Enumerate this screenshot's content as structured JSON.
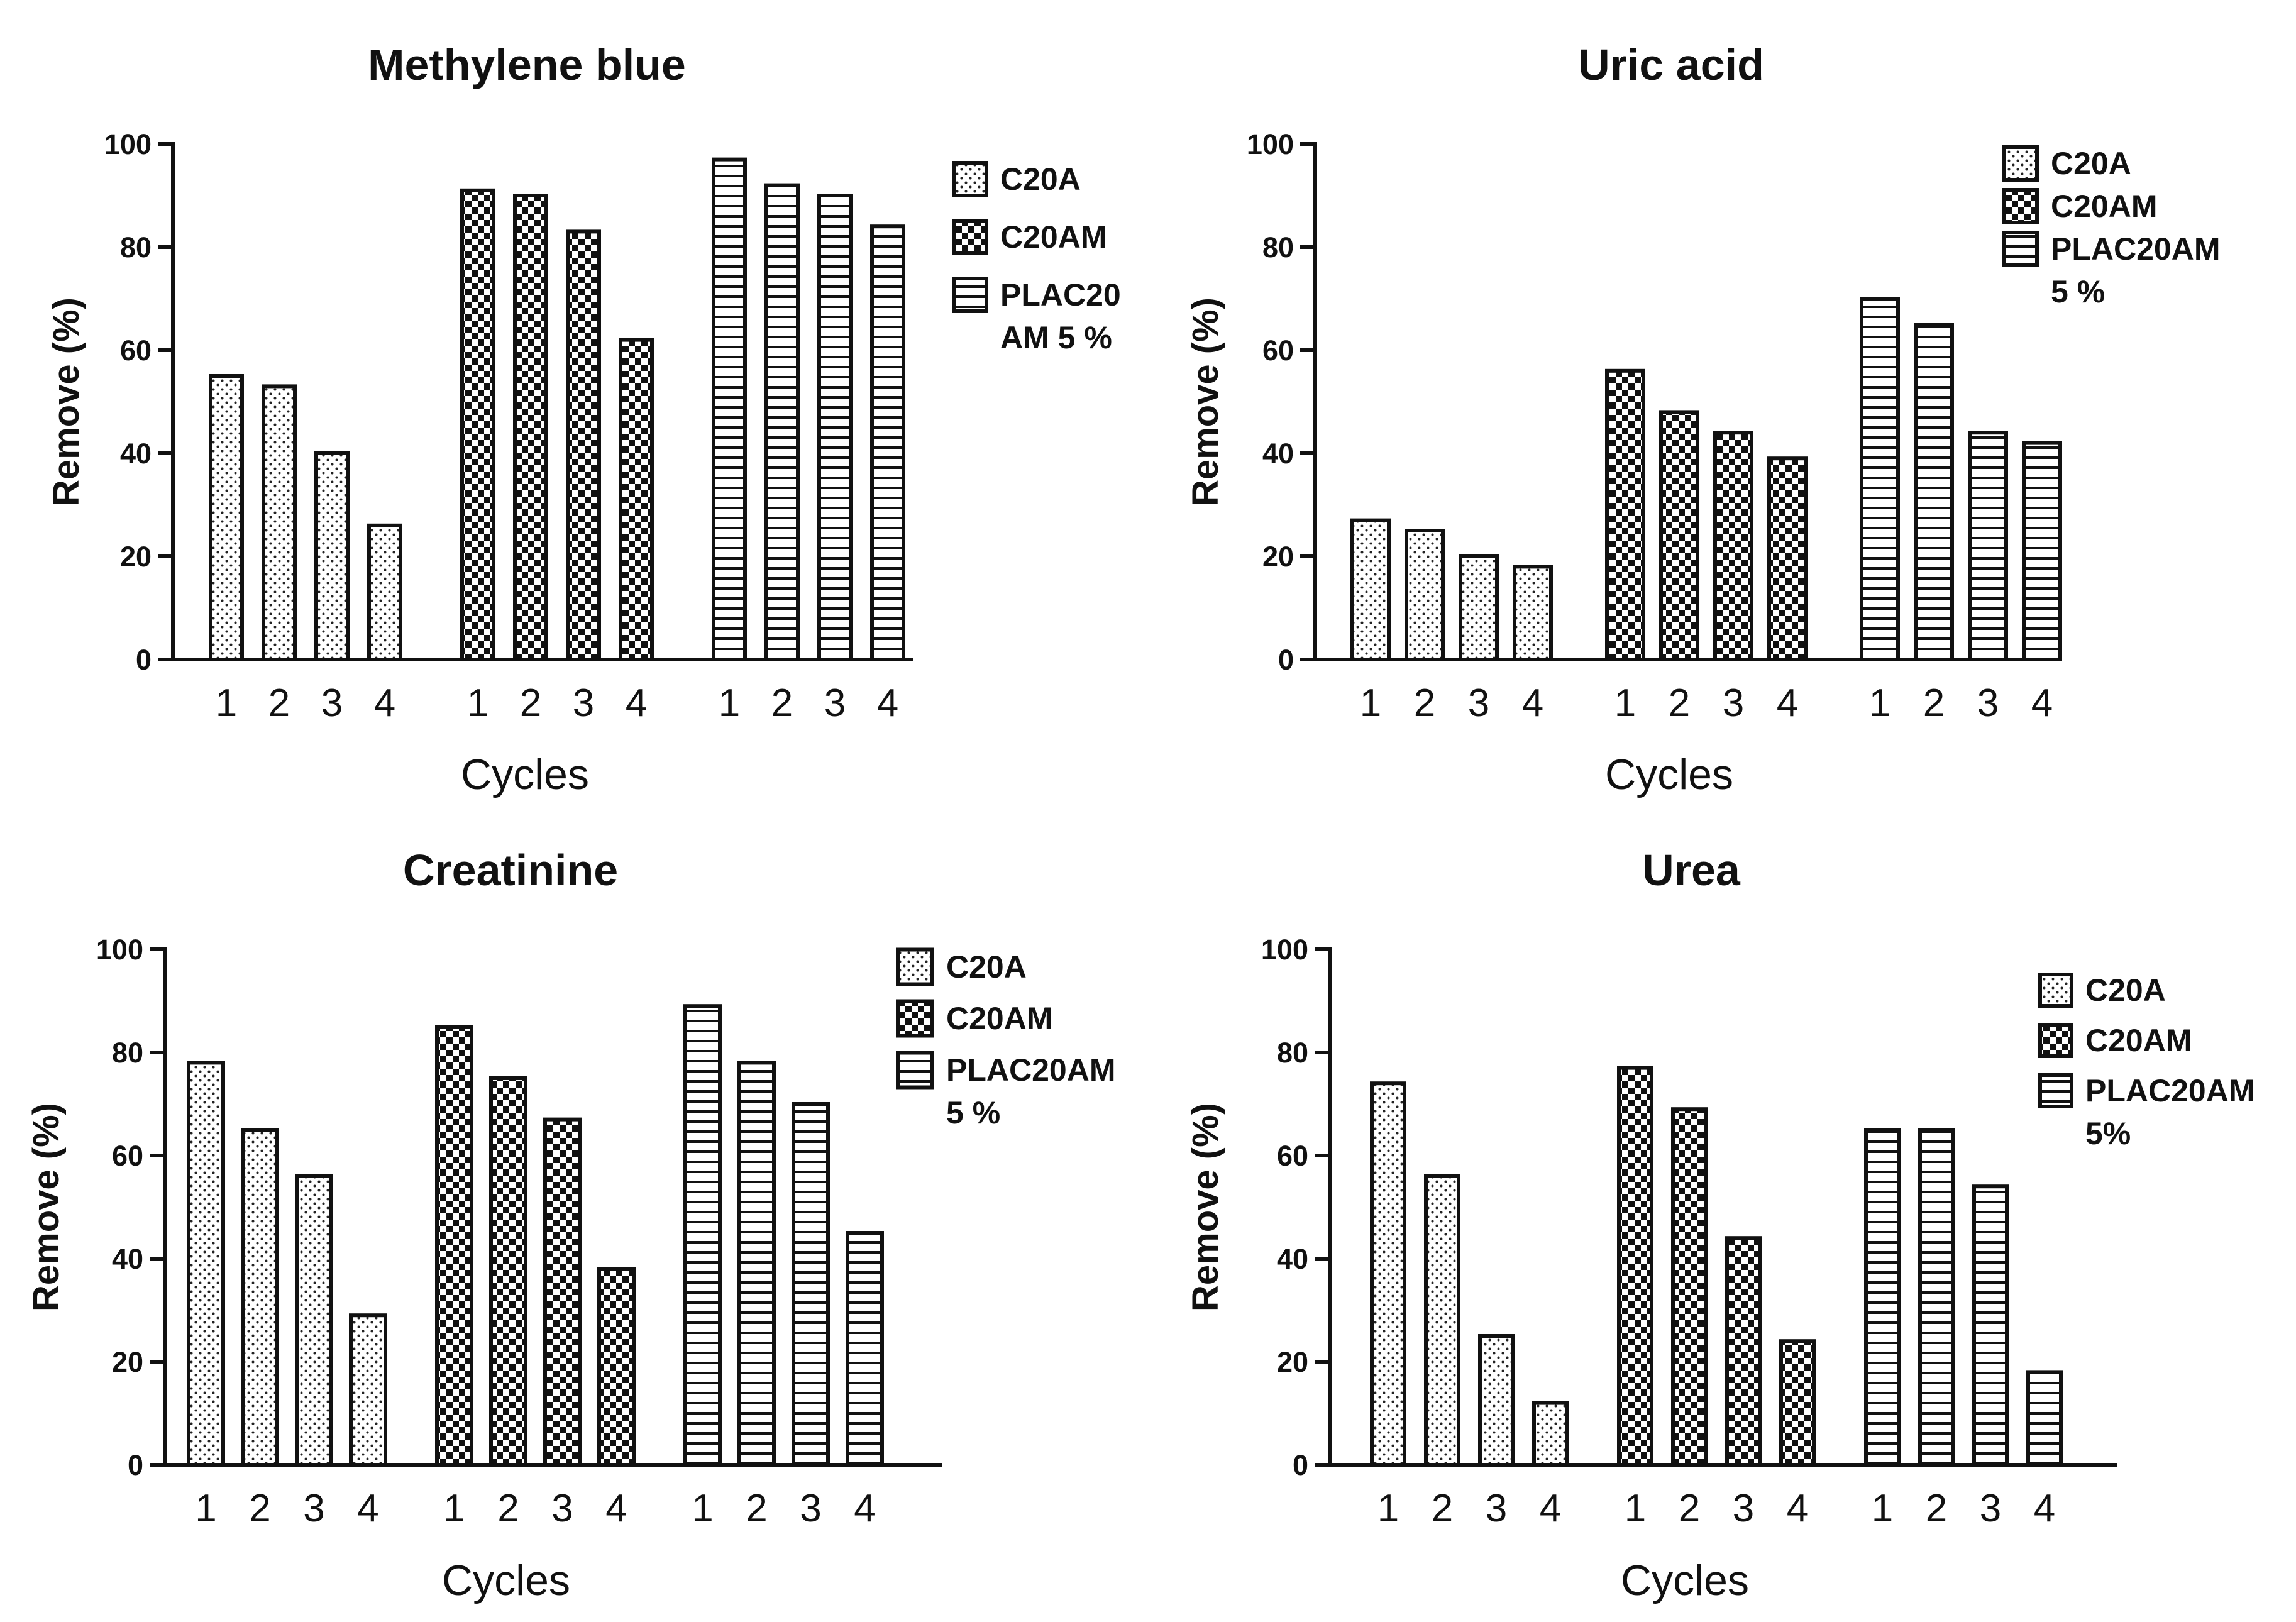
{
  "chart_data": [
    {
      "type": "bar",
      "title": "Methylene blue",
      "xlabel": "Cycles",
      "ylabel": "Remove (%)",
      "ylim": [
        0,
        100
      ],
      "yticks": [
        "0",
        "20",
        "40",
        "60",
        "80",
        "100"
      ],
      "categories": [
        "1",
        "2",
        "3",
        "4"
      ],
      "series": [
        {
          "name": "C20A",
          "pattern": "dots",
          "values": [
            55,
            53,
            40,
            26
          ]
        },
        {
          "name": "C20AM",
          "pattern": "checker",
          "values": [
            91,
            90,
            83,
            62
          ]
        },
        {
          "name": "PLAC20AM 5 %",
          "pattern": "hlines",
          "values": [
            97,
            92,
            90,
            84
          ]
        }
      ],
      "legend_lines": [
        [
          "C20A"
        ],
        [
          "C20AM"
        ],
        [
          "PLAC20",
          "AM 5 %"
        ]
      ],
      "legend_position": "top-right"
    },
    {
      "type": "bar",
      "title": "Uric acid",
      "xlabel": "Cycles",
      "ylabel": "Remove (%)",
      "ylim": [
        0,
        100
      ],
      "yticks": [
        "0",
        "20",
        "40",
        "60",
        "80",
        "100"
      ],
      "categories": [
        "1",
        "2",
        "3",
        "4"
      ],
      "series": [
        {
          "name": "C20A",
          "pattern": "dots",
          "values": [
            27,
            25,
            20,
            18
          ]
        },
        {
          "name": "C20AM",
          "pattern": "checker",
          "values": [
            56,
            48,
            44,
            39
          ]
        },
        {
          "name": "PLAC20AM 5 %",
          "pattern": "hlines",
          "values": [
            70,
            65,
            44,
            42
          ]
        }
      ],
      "legend_lines": [
        [
          "C20A"
        ],
        [
          "C20AM"
        ],
        [
          "PLAC20AM",
          "5 %"
        ]
      ],
      "legend_position": "top-right"
    },
    {
      "type": "bar",
      "title": "Creatinine",
      "xlabel": "Cycles",
      "ylabel": "Remove (%)",
      "ylim": [
        0,
        100
      ],
      "yticks": [
        "0",
        "20",
        "40",
        "60",
        "80",
        "100"
      ],
      "categories": [
        "1",
        "2",
        "3",
        "4"
      ],
      "series": [
        {
          "name": "C20A",
          "pattern": "dots",
          "values": [
            78,
            65,
            56,
            29
          ]
        },
        {
          "name": "C20AM",
          "pattern": "checker",
          "values": [
            85,
            75,
            67,
            38
          ]
        },
        {
          "name": "PLAC20AM 5 %",
          "pattern": "hlines",
          "values": [
            89,
            78,
            70,
            45
          ]
        }
      ],
      "legend_lines": [
        [
          "C20A"
        ],
        [
          "C20AM"
        ],
        [
          "PLAC20AM",
          "5 %"
        ]
      ],
      "legend_position": "top-right"
    },
    {
      "type": "bar",
      "title": "Urea",
      "xlabel": "Cycles",
      "ylabel": "Remove (%)",
      "ylim": [
        0,
        100
      ],
      "yticks": [
        "0",
        "20",
        "40",
        "60",
        "80",
        "100"
      ],
      "categories": [
        "1",
        "2",
        "3",
        "4"
      ],
      "series": [
        {
          "name": "C20A",
          "pattern": "dots",
          "values": [
            74,
            56,
            25,
            12
          ]
        },
        {
          "name": "C20AM",
          "pattern": "checker",
          "values": [
            77,
            69,
            44,
            24
          ]
        },
        {
          "name": "PLAC20AM 5%",
          "pattern": "hlines",
          "values": [
            65,
            65,
            54,
            18
          ]
        }
      ],
      "legend_lines": [
        [
          "C20A"
        ],
        [
          "C20AM"
        ],
        [
          "PLAC20AM",
          "5%"
        ]
      ],
      "legend_position": "top-right"
    }
  ]
}
